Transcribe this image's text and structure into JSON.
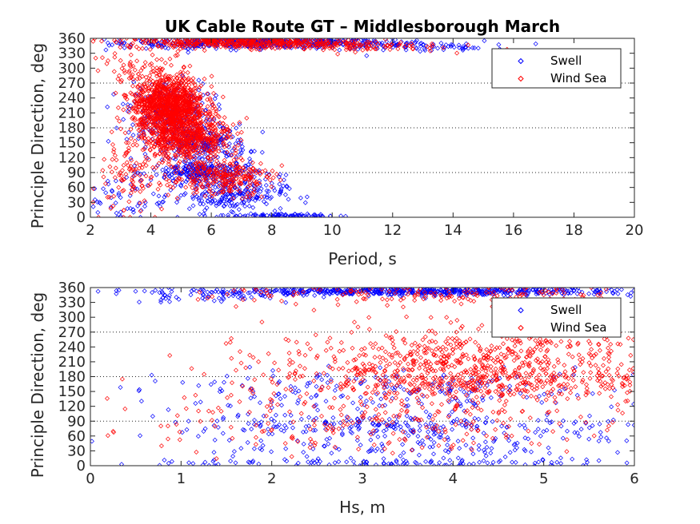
{
  "title": "UK Cable Route GT – Middlesborough March",
  "colors": {
    "swell": "#0000ff",
    "wind_sea": "#ff0000",
    "axis": "#262626",
    "grid": "#262626"
  },
  "chart_data": [
    {
      "type": "scatter",
      "xlabel": "Period, s",
      "ylabel": "Principle Direction, deg",
      "xlim": [
        2,
        20
      ],
      "ylim": [
        0,
        360
      ],
      "xticks": [
        "2",
        "4",
        "6",
        "8",
        "10",
        "12",
        "14",
        "16",
        "18",
        "20"
      ],
      "yticks": [
        "0",
        "30",
        "60",
        "90",
        "120",
        "150",
        "180",
        "210",
        "240",
        "270",
        "300",
        "330",
        "360"
      ],
      "grid": "horizontal dotted at 90, 180, 270",
      "legend_position": "top-right",
      "series": [
        {
          "name": "Swell",
          "marker": "diamond",
          "color": "#0000ff",
          "clusters": [
            {
              "x": 7.5,
              "y": 352,
              "sx": 2.2,
              "sy": 6,
              "n": 520
            },
            {
              "x": 12.0,
              "y": 345,
              "sx": 1.5,
              "sy": 5,
              "n": 90
            },
            {
              "x": 14.5,
              "y": 340,
              "sx": 0.6,
              "sy": 4,
              "n": 10
            },
            {
              "x": 4.6,
              "y": 215,
              "sx": 0.7,
              "sy": 30,
              "n": 220
            },
            {
              "x": 5.6,
              "y": 150,
              "sx": 0.8,
              "sy": 18,
              "n": 260
            },
            {
              "x": 5.8,
              "y": 90,
              "sx": 0.9,
              "sy": 12,
              "n": 260
            },
            {
              "x": 6.6,
              "y": 45,
              "sx": 0.9,
              "sy": 15,
              "n": 200
            },
            {
              "x": 8.2,
              "y": 3,
              "sx": 1.0,
              "sy": 2,
              "n": 90
            },
            {
              "x": 3.2,
              "y": 40,
              "sx": 0.6,
              "sy": 30,
              "n": 50
            }
          ]
        },
        {
          "name": "Wind Sea",
          "marker": "diamond",
          "color": "#ff0000",
          "clusters": [
            {
              "x": 7.0,
              "y": 352,
              "sx": 2.0,
              "sy": 6,
              "n": 450
            },
            {
              "x": 10.5,
              "y": 343,
              "sx": 1.6,
              "sy": 5,
              "n": 80
            },
            {
              "x": 4.6,
              "y": 225,
              "sx": 0.6,
              "sy": 28,
              "n": 1100
            },
            {
              "x": 5.2,
              "y": 160,
              "sx": 0.7,
              "sy": 22,
              "n": 550
            },
            {
              "x": 6.4,
              "y": 80,
              "sx": 0.8,
              "sy": 18,
              "n": 250
            },
            {
              "x": 3.4,
              "y": 80,
              "sx": 0.7,
              "sy": 35,
              "n": 120
            },
            {
              "x": 3.6,
              "y": 300,
              "sx": 0.8,
              "sy": 15,
              "n": 60
            }
          ]
        }
      ]
    },
    {
      "type": "scatter",
      "xlabel": "Hs, m",
      "ylabel": "Principle Direction, deg",
      "xlim": [
        0,
        6
      ],
      "ylim": [
        0,
        360
      ],
      "xticks": [
        "0",
        "1",
        "2",
        "3",
        "4",
        "5",
        "6"
      ],
      "yticks": [
        "0",
        "30",
        "60",
        "90",
        "120",
        "150",
        "180",
        "210",
        "240",
        "270",
        "300",
        "330",
        "360"
      ],
      "grid": "horizontal dotted at 90, 180, 270",
      "legend_position": "top-right",
      "series": [
        {
          "name": "Swell",
          "marker": "diamond",
          "color": "#0000ff",
          "clusters": [
            {
              "x": 3.6,
              "y": 352,
              "sx": 1.3,
              "sy": 4,
              "n": 600
            },
            {
              "x": 1.2,
              "y": 340,
              "sx": 0.4,
              "sy": 5,
              "n": 40
            },
            {
              "x": 3.6,
              "y": 85,
              "sx": 1.3,
              "sy": 10,
              "n": 180
            },
            {
              "x": 3.3,
              "y": 150,
              "sx": 1.4,
              "sy": 20,
              "n": 200
            },
            {
              "x": 3.3,
              "y": 45,
              "sx": 1.4,
              "sy": 25,
              "n": 200
            },
            {
              "x": 3.5,
              "y": 5,
              "sx": 1.5,
              "sy": 4,
              "n": 90
            }
          ]
        },
        {
          "name": "Wind Sea",
          "marker": "diamond",
          "color": "#ff0000",
          "clusters": [
            {
              "x": 4.2,
              "y": 210,
              "sx": 1.1,
              "sy": 35,
              "n": 700
            },
            {
              "x": 4.5,
              "y": 165,
              "sx": 1.0,
              "sy": 15,
              "n": 220
            },
            {
              "x": 3.8,
              "y": 345,
              "sx": 1.2,
              "sy": 10,
              "n": 150
            },
            {
              "x": 3.3,
              "y": 70,
              "sx": 1.3,
              "sy": 30,
              "n": 150
            },
            {
              "x": 2.8,
              "y": 120,
              "sx": 1.0,
              "sy": 30,
              "n": 100
            }
          ]
        }
      ]
    }
  ]
}
